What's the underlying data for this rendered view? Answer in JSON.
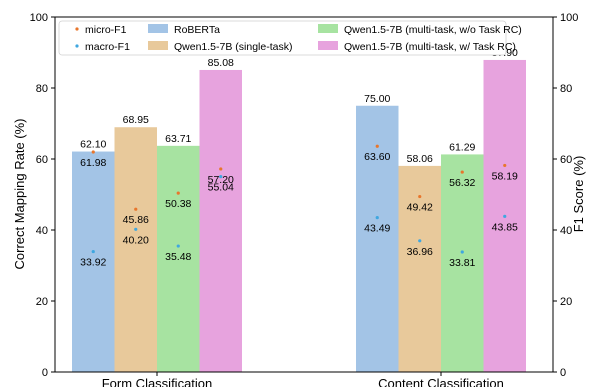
{
  "chart_data": {
    "type": "bar",
    "categories": [
      "Form Classification",
      "Content Classification"
    ],
    "ylabel_left": "Correct Mapping Rate (%)",
    "ylabel_right": "F1 Score (%)",
    "ylim": [
      0,
      100
    ],
    "yticks": [
      "0",
      "20",
      "40",
      "60",
      "80",
      "100"
    ],
    "legend_position": "top-left",
    "series": [
      {
        "name": "RoBERTa",
        "color": "#a3c4e6",
        "values": [
          62.1,
          75.0
        ],
        "labels": [
          "62.10",
          "75.00"
        ]
      },
      {
        "name": "Qwen1.5-7B (single-task)",
        "color": "#e8c99b",
        "values": [
          68.95,
          58.06
        ],
        "labels": [
          "68.95",
          "58.06"
        ]
      },
      {
        "name": "Qwen1.5-7B (multi-task, w/o Task RC)",
        "color": "#a7e3a1",
        "values": [
          63.71,
          61.29
        ],
        "labels": [
          "63.71",
          "61.29"
        ]
      },
      {
        "name": "Qwen1.5-7B (multi-task, w/ Task RC)",
        "color": "#e7a3de",
        "values": [
          85.08,
          87.9
        ],
        "labels": [
          "85.08",
          "87.90"
        ]
      }
    ],
    "scores": [
      {
        "name": "micro-F1",
        "color": "#e8762c",
        "values": [
          [
            61.98,
            45.86,
            50.38,
            57.2
          ],
          [
            63.6,
            49.42,
            56.32,
            58.19
          ]
        ],
        "labels": [
          [
            "61.98",
            "45.86",
            "50.38",
            "57.20"
          ],
          [
            "63.60",
            "49.42",
            "56.32",
            "58.19"
          ]
        ]
      },
      {
        "name": "macro-F1",
        "color": "#3fa7e0",
        "values": [
          [
            33.92,
            40.2,
            35.48,
            55.04
          ],
          [
            43.49,
            36.96,
            33.81,
            43.85
          ]
        ],
        "labels": [
          [
            "33.92",
            "40.20",
            "35.48",
            "55.04"
          ],
          [
            "43.49",
            "36.96",
            "33.81",
            "43.85"
          ]
        ]
      }
    ]
  }
}
